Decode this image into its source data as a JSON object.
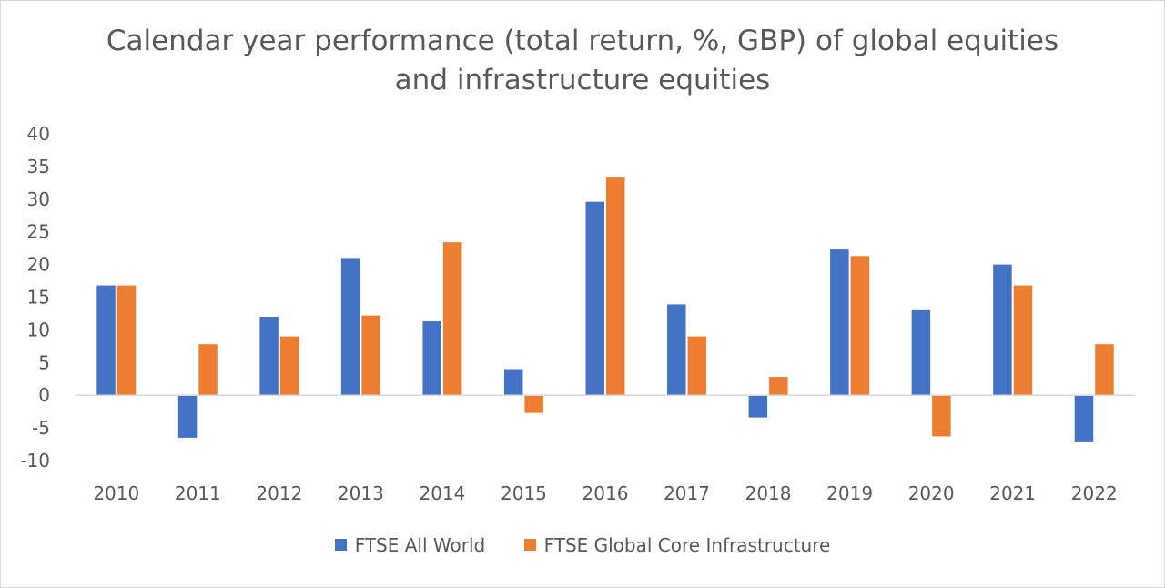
{
  "chart_data": {
    "type": "bar",
    "title_lines": [
      "Calendar year performance (total return, %, GBP) of global equities",
      "and infrastructure equities"
    ],
    "categories": [
      "2010",
      "2011",
      "2012",
      "2013",
      "2014",
      "2015",
      "2016",
      "2017",
      "2018",
      "2019",
      "2020",
      "2021",
      "2022"
    ],
    "series": [
      {
        "name": "FTSE All World",
        "color": "#4472C4",
        "values": [
          16.8,
          -6.5,
          12.0,
          21.0,
          11.3,
          4.0,
          29.6,
          13.9,
          -3.4,
          22.3,
          13.0,
          20.0,
          -7.2
        ]
      },
      {
        "name": "FTSE Global Core Infrastructure",
        "color": "#ED7D31",
        "values": [
          16.8,
          7.8,
          9.0,
          12.2,
          23.4,
          -2.7,
          33.3,
          9.0,
          2.8,
          21.3,
          -6.3,
          16.8,
          7.8
        ]
      }
    ],
    "ylim": [
      -10,
      40
    ],
    "yticks": [
      40,
      35,
      30,
      25,
      20,
      15,
      10,
      5,
      0,
      -5,
      -10
    ],
    "ylabel": "",
    "xlabel": "",
    "grid": false,
    "legend_position": "bottom"
  }
}
